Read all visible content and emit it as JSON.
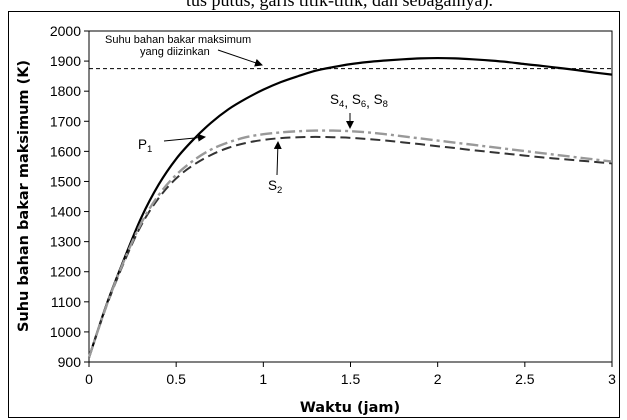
{
  "caption_fragment": "tus putus, garis titik-titik, dan sebagainya).",
  "chart_data": {
    "type": "line",
    "title": "",
    "xlabel": "Waktu (jam)",
    "ylabel": "Suhu bahan bakar maksimum (K)",
    "xlim": [
      0,
      3
    ],
    "ylim": [
      900,
      2000
    ],
    "x_ticks": [
      0,
      0.5,
      1,
      1.5,
      2,
      2.5,
      3
    ],
    "x_tick_labels": [
      "0",
      "0.5",
      "1",
      "1.5",
      "2",
      "2.5",
      "3"
    ],
    "y_ticks": [
      900,
      1000,
      1100,
      1200,
      1300,
      1400,
      1500,
      1600,
      1700,
      1800,
      1900,
      2000
    ],
    "y_tick_labels": [
      "900",
      "1000",
      "1100",
      "1200",
      "1300",
      "1400",
      "1500",
      "1600",
      "1700",
      "1800",
      "1900",
      "2000"
    ],
    "grid": false,
    "limit_line": {
      "y": 1875,
      "label_line1": "Suhu bahan bakar maksimum",
      "label_line2": "yang diizinkan"
    },
    "series": [
      {
        "label": "P1",
        "style": "solid",
        "color": "#000000",
        "x": [
          0,
          0.1,
          0.2,
          0.3,
          0.4,
          0.5,
          0.6,
          0.7,
          0.8,
          0.9,
          1.0,
          1.1,
          1.2,
          1.3,
          1.4,
          1.5,
          1.6,
          1.7,
          1.8,
          1.9,
          2.0,
          2.1,
          2.2,
          2.3,
          2.4,
          2.5,
          2.6,
          2.7,
          2.8,
          2.9,
          3.0
        ],
        "y": [
          915,
          1090,
          1240,
          1380,
          1490,
          1575,
          1640,
          1695,
          1740,
          1775,
          1805,
          1830,
          1850,
          1868,
          1880,
          1890,
          1897,
          1902,
          1906,
          1909,
          1910,
          1909,
          1906,
          1902,
          1897,
          1890,
          1884,
          1877,
          1870,
          1862,
          1855
        ]
      },
      {
        "label": "S2",
        "style": "dashed",
        "color": "#333333",
        "x": [
          0,
          0.1,
          0.2,
          0.3,
          0.4,
          0.5,
          0.6,
          0.7,
          0.8,
          0.9,
          1.0,
          1.1,
          1.2,
          1.3,
          1.4,
          1.5,
          1.6,
          1.7,
          1.8,
          1.9,
          2.0,
          2.1,
          2.2,
          2.3,
          2.4,
          2.5,
          2.6,
          2.7,
          2.8,
          2.9,
          3.0
        ],
        "y": [
          915,
          1085,
          1230,
          1355,
          1445,
          1510,
          1555,
          1588,
          1612,
          1628,
          1638,
          1644,
          1647,
          1648,
          1647,
          1645,
          1641,
          1636,
          1630,
          1624,
          1617,
          1611,
          1604,
          1598,
          1592,
          1586,
          1580,
          1575,
          1570,
          1565,
          1560
        ]
      },
      {
        "label": "S4, S6, S8",
        "style": "dashdot",
        "color": "#999999",
        "x": [
          0,
          0.1,
          0.2,
          0.3,
          0.4,
          0.5,
          0.6,
          0.7,
          0.8,
          0.9,
          1.0,
          1.1,
          1.2,
          1.3,
          1.4,
          1.5,
          1.6,
          1.7,
          1.8,
          1.9,
          2.0,
          2.1,
          2.2,
          2.3,
          2.4,
          2.5,
          2.6,
          2.7,
          2.8,
          2.9,
          3.0
        ],
        "y": [
          915,
          1087,
          1235,
          1362,
          1455,
          1522,
          1570,
          1606,
          1630,
          1647,
          1657,
          1663,
          1667,
          1669,
          1669,
          1667,
          1663,
          1657,
          1650,
          1643,
          1636,
          1629,
          1622,
          1615,
          1608,
          1601,
          1594,
          1587,
          1580,
          1573,
          1566
        ]
      }
    ],
    "annotations": [
      {
        "text": "P",
        "sub": "1"
      },
      {
        "text": "S",
        "sub": "2"
      },
      {
        "parts": [
          [
            "S",
            "4"
          ],
          [
            "S",
            "6"
          ],
          [
            "S",
            "8"
          ]
        ],
        "sep": ", "
      }
    ]
  }
}
